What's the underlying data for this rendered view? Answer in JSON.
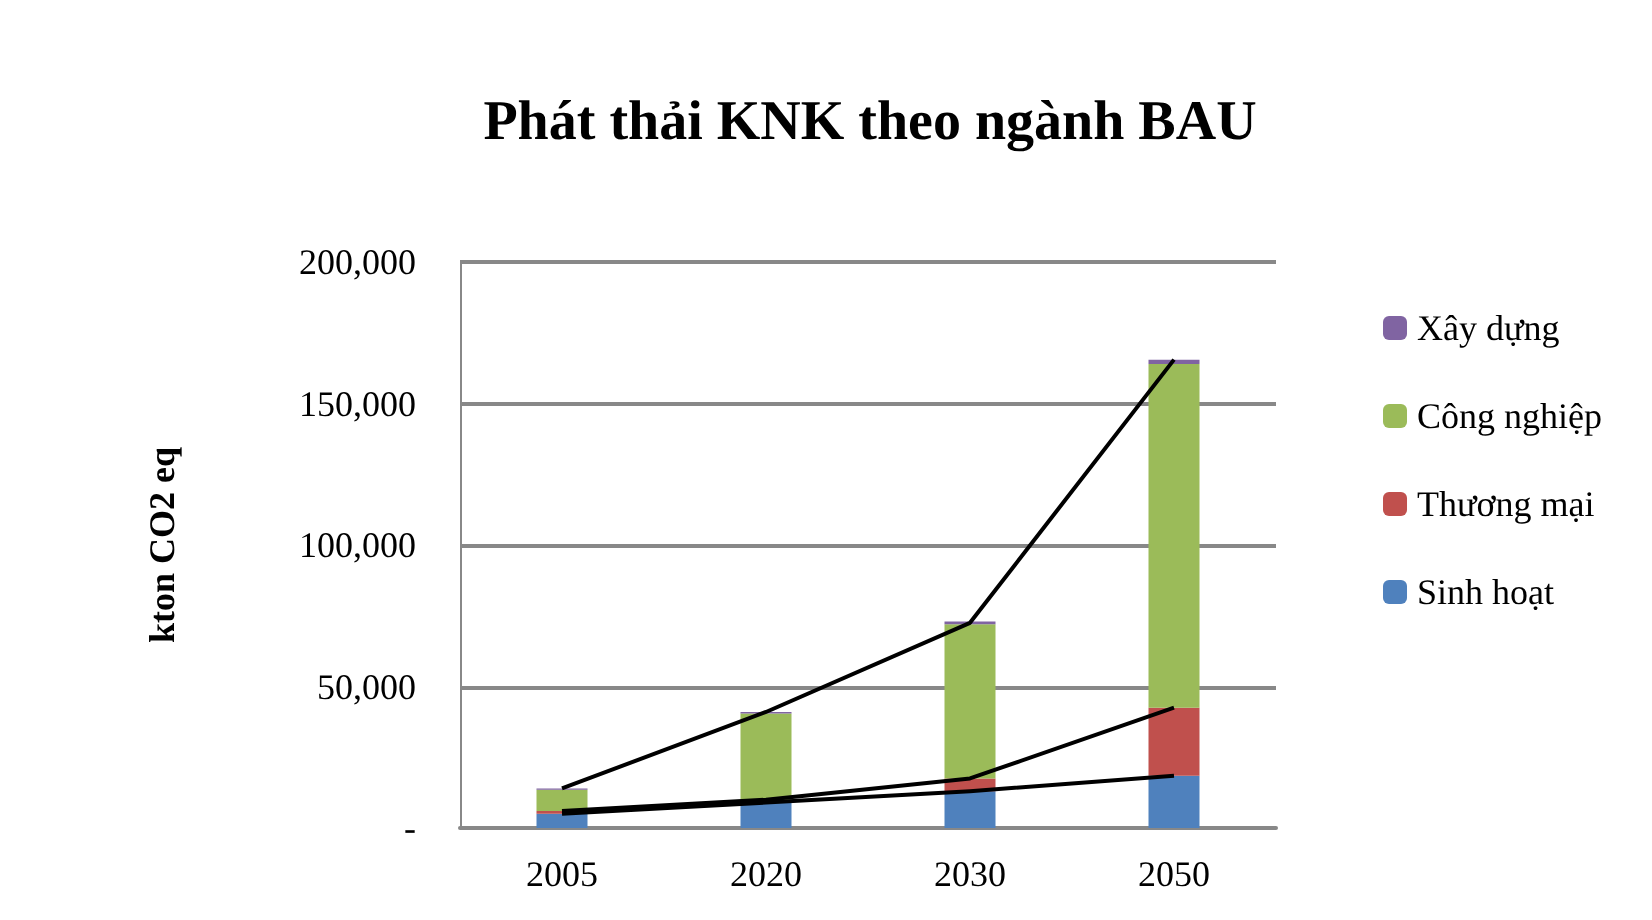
{
  "chart_data": {
    "type": "bar",
    "title": "Phát thải KNK theo ngành BAU",
    "ylabel": "kton CO2 eq",
    "categories": [
      "2005",
      "2020",
      "2030",
      "2050"
    ],
    "stacked": true,
    "legend": "right",
    "grid": "y",
    "ylim": [
      0,
      200000
    ],
    "yticks": [
      {
        "value": 0,
        "label": "-"
      },
      {
        "value": 50000,
        "label": "50,000"
      },
      {
        "value": 100000,
        "label": "100,000"
      },
      {
        "value": 150000,
        "label": "150,000"
      },
      {
        "value": 200000,
        "label": "200,000"
      }
    ],
    "series": [
      {
        "name": "Sinh hoạt",
        "color": "#4f81bd",
        "values": [
          5000,
          9000,
          13000,
          18500
        ]
      },
      {
        "name": "Thương mại",
        "color": "#c0504d",
        "values": [
          1000,
          1000,
          4500,
          24000
        ]
      },
      {
        "name": "Công nghiệp",
        "color": "#9bbb59",
        "values": [
          7500,
          30500,
          54500,
          121500
        ]
      },
      {
        "name": "Xây dựng",
        "color": "#8064a2",
        "values": [
          500,
          500,
          1000,
          1500
        ]
      },
      {
        "type": "line",
        "color": "#000000",
        "values": [
          5000,
          9000,
          13000,
          18500
        ]
      },
      {
        "type": "line",
        "color": "#000000",
        "values": [
          6000,
          10000,
          17500,
          42500
        ]
      },
      {
        "type": "line",
        "color": "#000000",
        "values": [
          14000,
          41000,
          72500,
          165500
        ]
      }
    ]
  }
}
